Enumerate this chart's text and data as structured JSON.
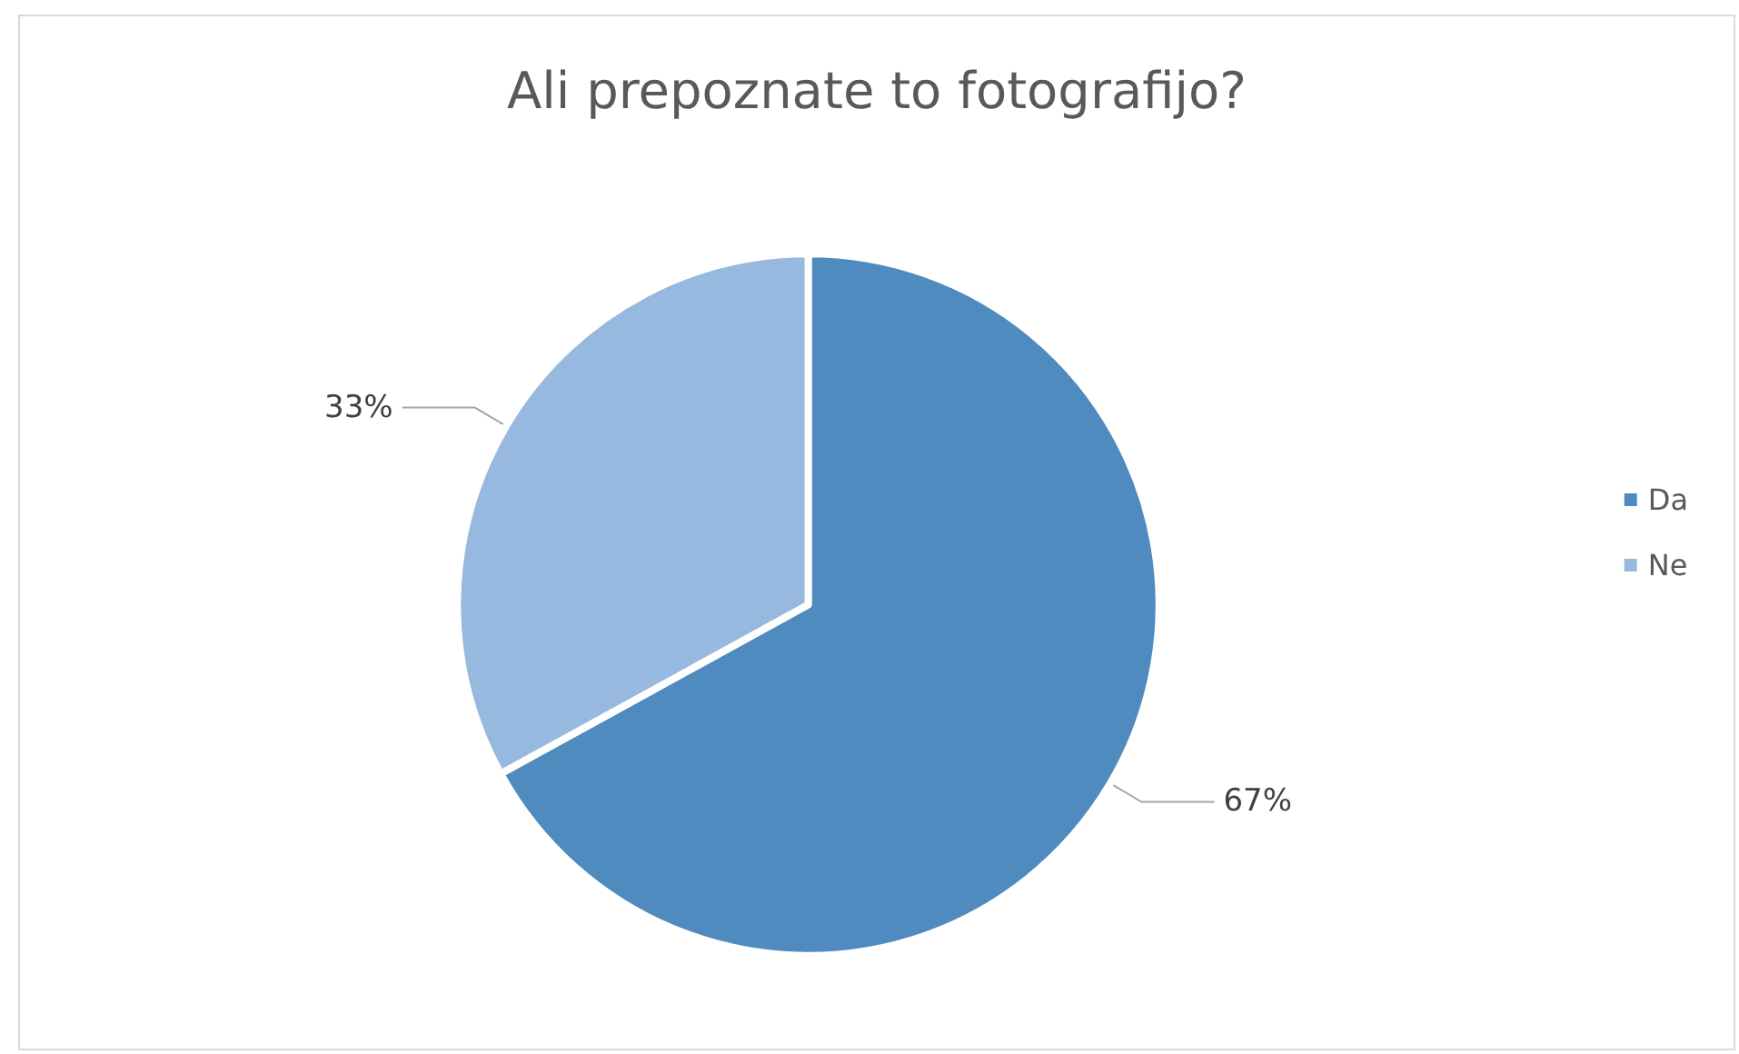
{
  "chart_data": {
    "type": "pie",
    "title": "Ali prepoznate to fotografijo?",
    "categories": [
      "Da",
      "Ne"
    ],
    "values": [
      67,
      33
    ],
    "colors": [
      "#4f8bbe",
      "#97b8df"
    ],
    "value_labels": [
      "67%",
      "33%"
    ],
    "legend": "right"
  }
}
